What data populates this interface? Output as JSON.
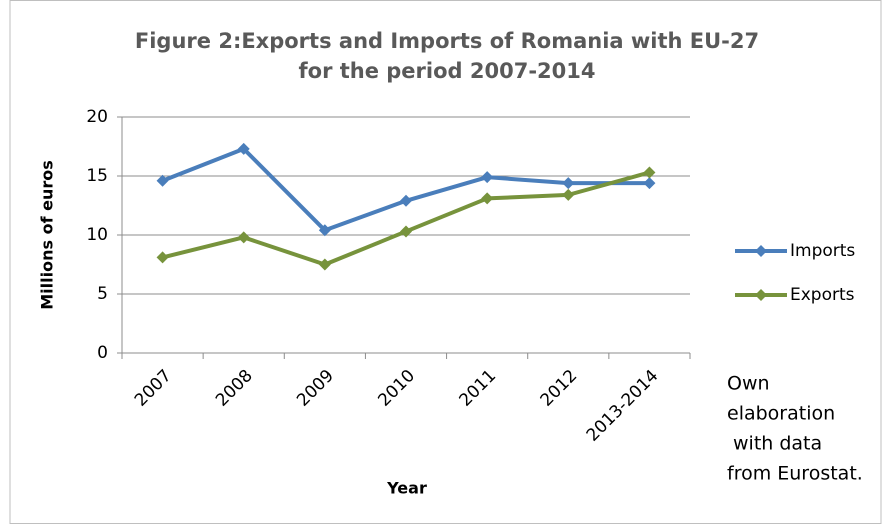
{
  "chart_data": {
    "type": "line",
    "title": [
      "Figure 2:Exports and Imports of Romania with EU-27",
      "for the period 2007-2014"
    ],
    "x_label": "Year",
    "y_label": "Millions of euros",
    "categories": [
      "2007",
      "2008",
      "2009",
      "2010",
      "2011",
      "2012",
      "2013-2014"
    ],
    "series": [
      {
        "name": "Imports",
        "color": "#4a7ebb",
        "values": [
          14.6,
          17.3,
          10.4,
          12.9,
          14.9,
          14.4,
          14.4
        ]
      },
      {
        "name": "Exports",
        "color": "#77933c",
        "values": [
          8.1,
          9.8,
          7.5,
          10.3,
          13.1,
          13.4,
          15.3
        ]
      }
    ],
    "ylim": [
      0,
      20
    ],
    "yticks": [
      0,
      5,
      10,
      15,
      20
    ],
    "grid": true,
    "legend": "right",
    "annotation": [
      "Own",
      "elaboration",
      "with data",
      "from Eurostat."
    ]
  }
}
